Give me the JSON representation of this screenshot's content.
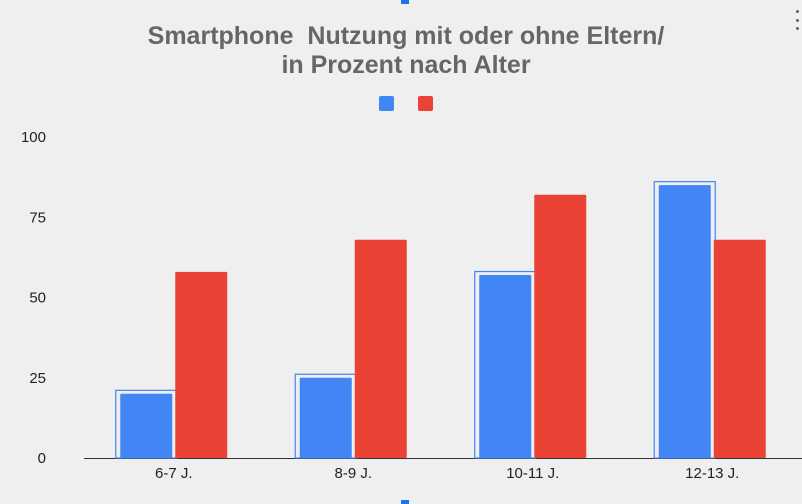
{
  "chart_data": {
    "type": "bar",
    "title_lines": [
      "Smartphone  Nutzung mit oder ohne Eltern/",
      "in Prozent nach Alter"
    ],
    "categories": [
      "6-7 J.",
      "8-9 J.",
      "10-11 J.",
      "12-13 J."
    ],
    "series": [
      {
        "name": "",
        "color": "#4285f4",
        "values": [
          20,
          25,
          57,
          85
        ]
      },
      {
        "name": "",
        "color": "#ea4335",
        "values": [
          58,
          68,
          82,
          68
        ]
      }
    ],
    "xlabel": "",
    "ylabel": "",
    "ylim": [
      0,
      100
    ],
    "yticks": [
      0,
      25,
      50,
      75,
      100
    ],
    "selected_series": 0,
    "legend_position": "top-center"
  }
}
